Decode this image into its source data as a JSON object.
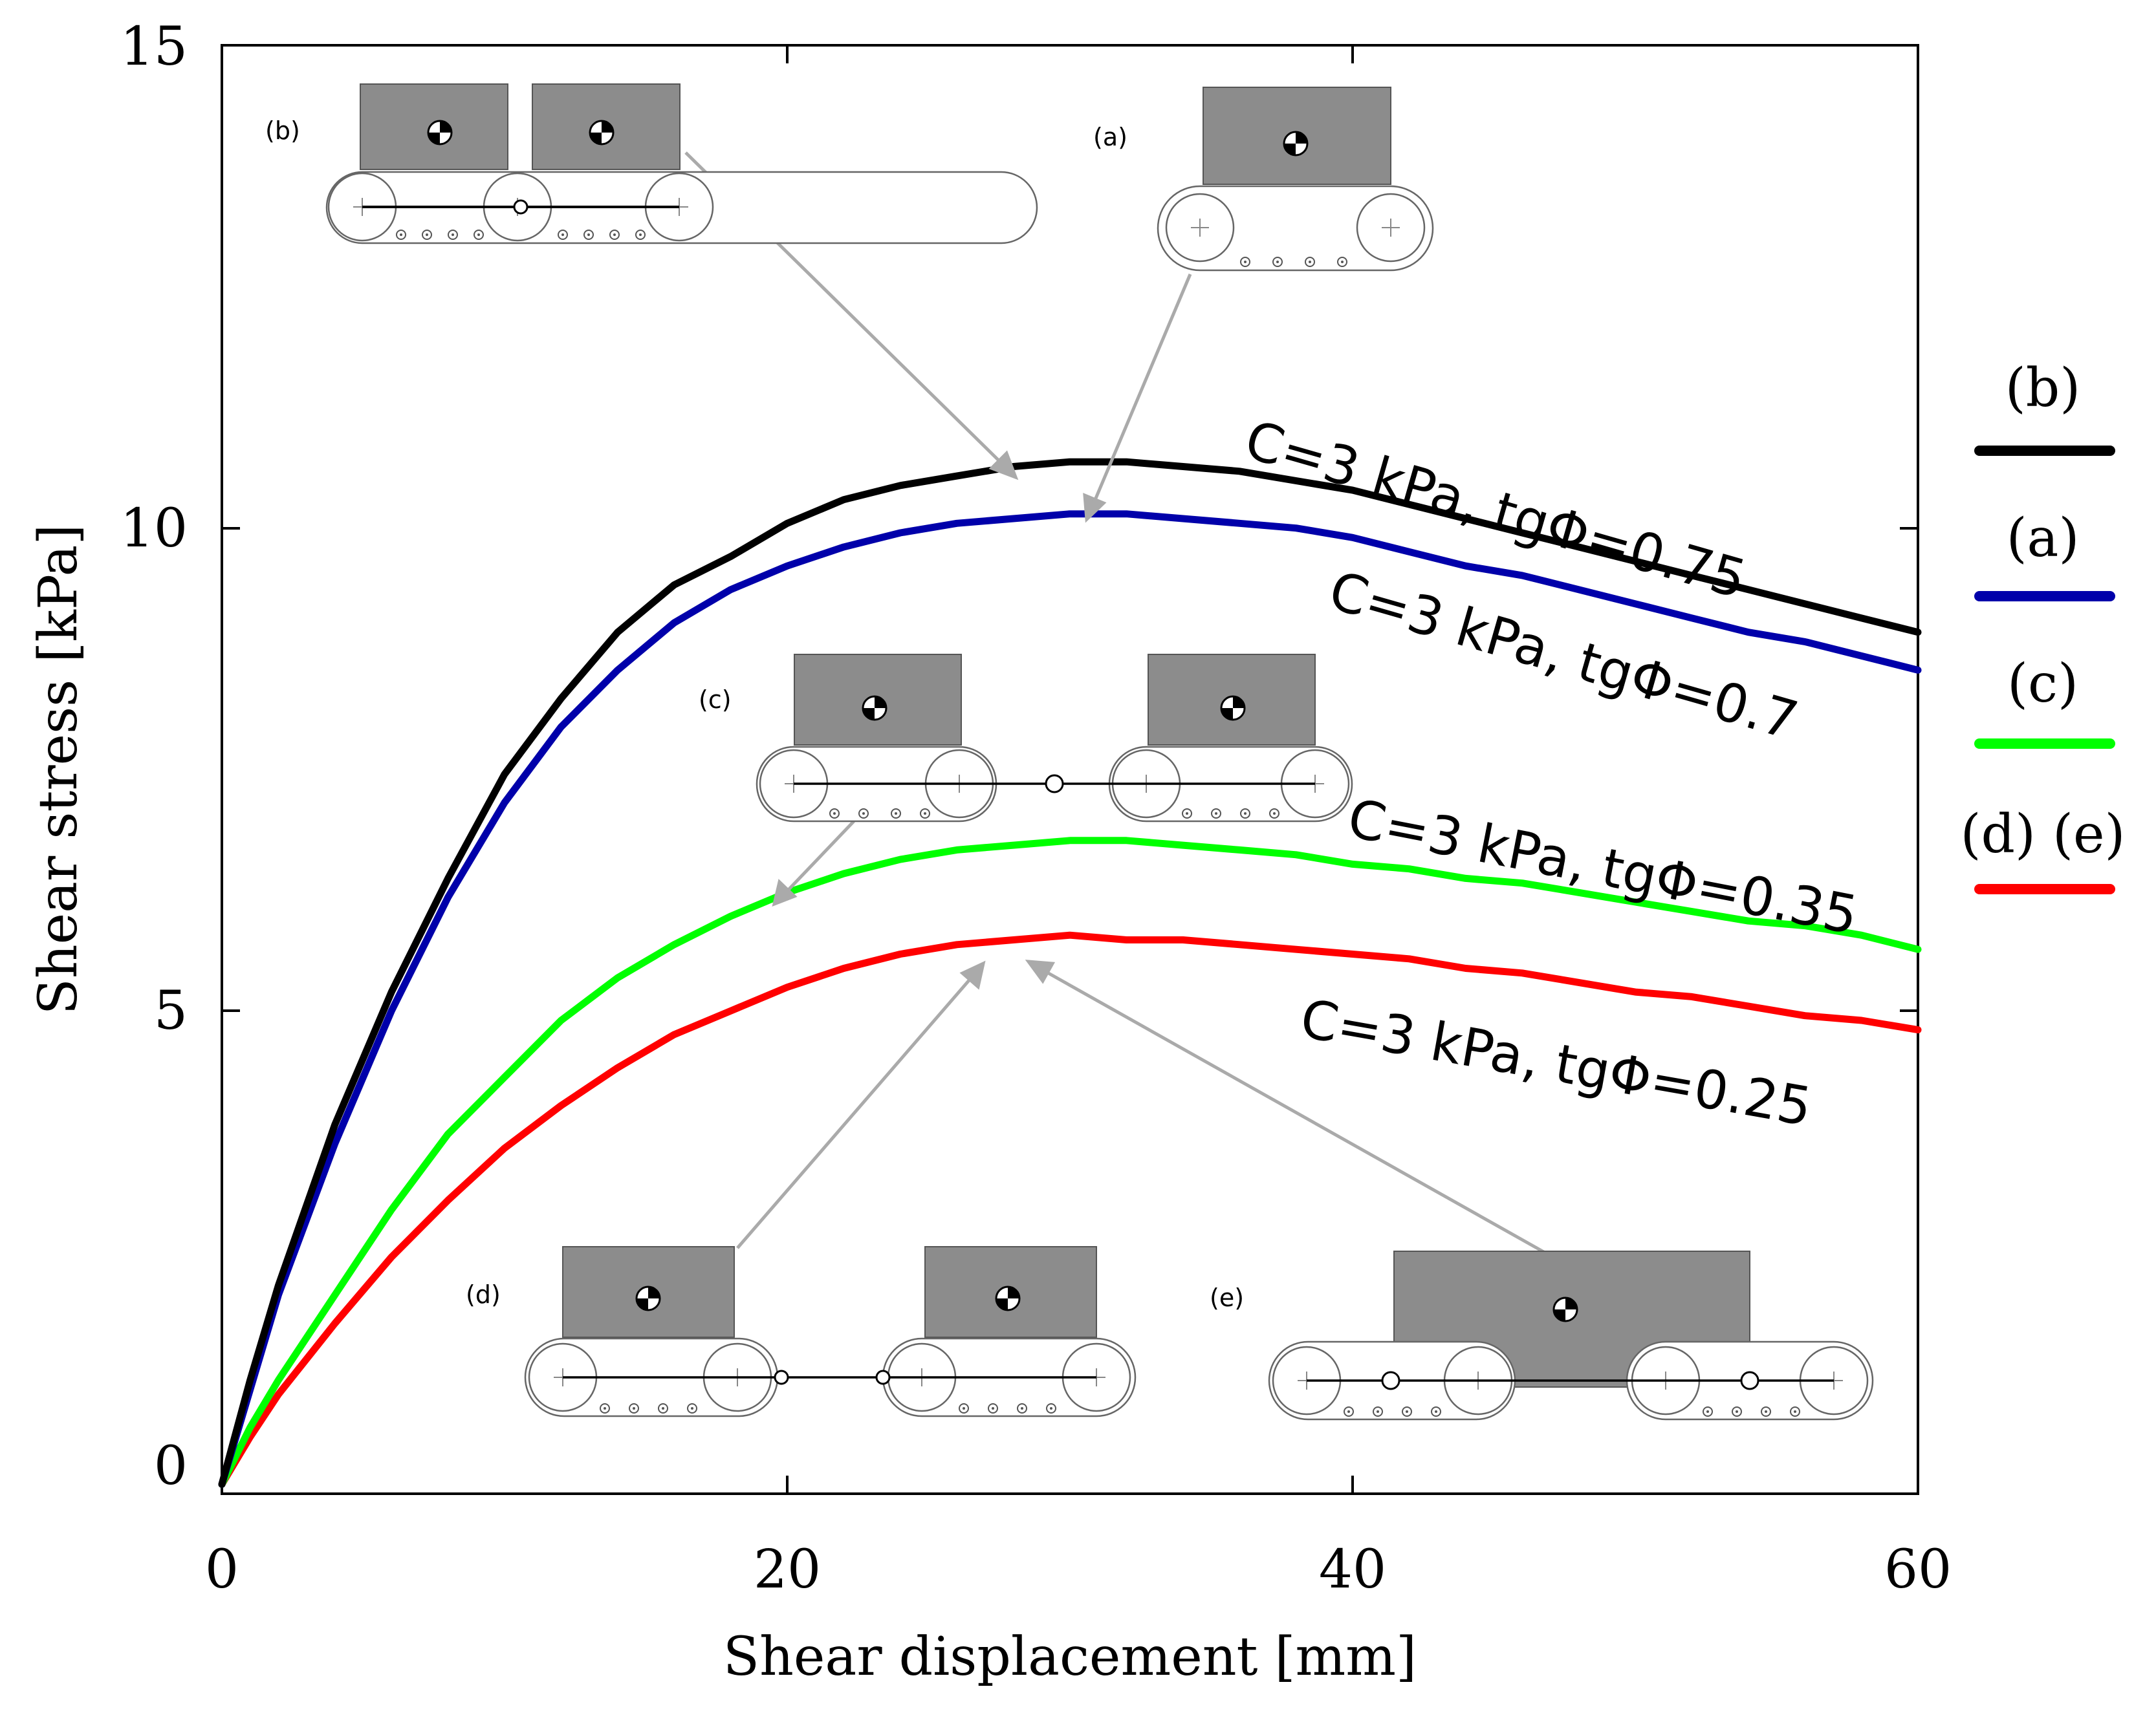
{
  "chart_data": {
    "type": "line",
    "xlabel": "Shear displacement [mm]",
    "ylabel": "Shear stress [kPa]",
    "xlim": [
      0,
      60
    ],
    "ylim": [
      -0.3,
      15
    ],
    "xticks": [
      0,
      20,
      40,
      60
    ],
    "yticks": [
      0,
      5,
      10,
      15
    ],
    "grid": false,
    "legend_position": "right",
    "series": [
      {
        "name": "(b)",
        "color": "#000000",
        "annotation": "C=3 kPa, tgΦ=0.75",
        "x": [
          0,
          1,
          2,
          4,
          6,
          8,
          10,
          12,
          14,
          16,
          18,
          20,
          22,
          24,
          26,
          28,
          30,
          32,
          34,
          36,
          38,
          40,
          42,
          44,
          46,
          48,
          50,
          52,
          54,
          56,
          58,
          60
        ],
        "y": [
          -0.2,
          0.9,
          1.9,
          3.6,
          5.0,
          6.2,
          7.3,
          8.1,
          8.8,
          9.3,
          9.6,
          9.95,
          10.2,
          10.35,
          10.45,
          10.55,
          10.6,
          10.6,
          10.55,
          10.5,
          10.4,
          10.3,
          10.15,
          10.0,
          9.85,
          9.7,
          9.55,
          9.4,
          9.25,
          9.1,
          8.95,
          8.8
        ]
      },
      {
        "name": "(a)",
        "color": "#0000aa",
        "annotation": "C=3 kPa, tgΦ=0.7",
        "x": [
          0,
          1,
          2,
          4,
          6,
          8,
          10,
          12,
          14,
          16,
          18,
          20,
          22,
          24,
          26,
          28,
          30,
          32,
          34,
          36,
          38,
          40,
          42,
          44,
          46,
          48,
          50,
          52,
          54,
          56,
          58,
          60
        ],
        "y": [
          -0.2,
          0.8,
          1.8,
          3.4,
          4.8,
          6.0,
          7.0,
          7.8,
          8.4,
          8.9,
          9.25,
          9.5,
          9.7,
          9.85,
          9.95,
          10.0,
          10.05,
          10.05,
          10.0,
          9.95,
          9.9,
          9.8,
          9.65,
          9.5,
          9.4,
          9.25,
          9.1,
          8.95,
          8.8,
          8.7,
          8.55,
          8.4
        ]
      },
      {
        "name": "(c)",
        "color": "#00ff00",
        "annotation": "C=3 kPa, tgΦ=0.35",
        "x": [
          0,
          1,
          2,
          4,
          6,
          8,
          10,
          12,
          14,
          16,
          18,
          20,
          22,
          24,
          26,
          28,
          30,
          32,
          34,
          36,
          38,
          40,
          42,
          44,
          46,
          48,
          50,
          52,
          54,
          56,
          58,
          60
        ],
        "y": [
          -0.2,
          0.4,
          0.9,
          1.8,
          2.7,
          3.5,
          4.1,
          4.7,
          5.15,
          5.5,
          5.8,
          6.05,
          6.25,
          6.4,
          6.5,
          6.55,
          6.6,
          6.6,
          6.55,
          6.5,
          6.45,
          6.35,
          6.3,
          6.2,
          6.15,
          6.05,
          5.95,
          5.85,
          5.75,
          5.7,
          5.6,
          5.45
        ]
      },
      {
        "name": "(d) (e)",
        "color": "#ff0000",
        "annotation": "C=3 kPa, tgΦ=0.25",
        "x": [
          0,
          1,
          2,
          4,
          6,
          8,
          10,
          12,
          14,
          16,
          18,
          20,
          22,
          24,
          26,
          28,
          30,
          32,
          34,
          36,
          38,
          40,
          42,
          44,
          46,
          48,
          50,
          52,
          54,
          56,
          58,
          60
        ],
        "y": [
          -0.2,
          0.3,
          0.75,
          1.5,
          2.2,
          2.8,
          3.35,
          3.8,
          4.2,
          4.55,
          4.8,
          5.05,
          5.25,
          5.4,
          5.5,
          5.55,
          5.6,
          5.55,
          5.55,
          5.5,
          5.45,
          5.4,
          5.35,
          5.25,
          5.2,
          5.1,
          5.0,
          4.95,
          4.85,
          4.75,
          4.7,
          4.6
        ]
      }
    ],
    "insets": [
      {
        "label": "(b)",
        "points_to_series": "(b)",
        "at": [
          27.8,
          10.55
        ]
      },
      {
        "label": "(a)",
        "points_to_series": "(a)",
        "at": [
          30.8,
          10.05
        ]
      },
      {
        "label": "(c)",
        "points_to_series": "(c)",
        "at": [
          19.6,
          6.05
        ]
      },
      {
        "label": "(d)",
        "points_to_series": "(d) (e)",
        "at": [
          26.8,
          5.5
        ]
      },
      {
        "label": "(e)",
        "points_to_series": "(d) (e)",
        "at": [
          28.5,
          5.55
        ]
      }
    ]
  }
}
